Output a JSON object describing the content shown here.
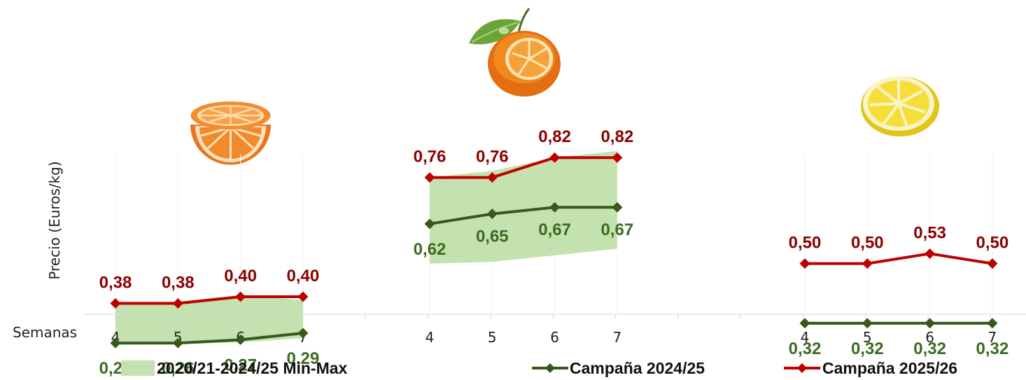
{
  "chart_data": {
    "type": "line",
    "ylabel": "Precio (Euros/kg)",
    "xlabel": "Semanas",
    "groups": [
      {
        "name": "orange-half",
        "categories": [
          "4",
          "5",
          "6",
          "7"
        ],
        "range_min": [
          0.255,
          0.257,
          0.262,
          0.275
        ],
        "range_max": [
          0.385,
          0.385,
          0.405,
          0.39
        ],
        "campaign_2024_25": [
          0.26,
          0.26,
          0.27,
          0.29
        ],
        "campaign_2025_26": [
          0.38,
          0.38,
          0.4,
          0.4
        ],
        "labels_2024_25": [
          "0,26",
          "0,26",
          "0,27",
          "0,29"
        ],
        "labels_2025_26": [
          "0,38",
          "0,38",
          "0,40",
          "0,40"
        ]
      },
      {
        "name": "mandarin",
        "categories": [
          "4",
          "5",
          "6",
          "7"
        ],
        "range_min": [
          0.5,
          0.505,
          0.525,
          0.545
        ],
        "range_max": [
          0.76,
          0.78,
          0.82,
          0.84
        ],
        "campaign_2024_25": [
          0.62,
          0.65,
          0.67,
          0.67
        ],
        "campaign_2025_26": [
          0.76,
          0.76,
          0.82,
          0.82
        ],
        "labels_2024_25": [
          "0,62",
          "0,65",
          "0,67",
          "0,67"
        ],
        "labels_2025_26": [
          "0,76",
          "0,76",
          "0,82",
          "0,82"
        ]
      },
      {
        "name": "lemon",
        "categories": [
          "4",
          "5",
          "6",
          "7"
        ],
        "range_min": [
          0.315,
          0.315,
          0.32,
          0.325
        ],
        "range_max": [
          0.32,
          0.32,
          0.32,
          0.32
        ],
        "campaign_2024_25": [
          0.32,
          0.32,
          0.32,
          0.32
        ],
        "campaign_2025_26": [
          0.5,
          0.5,
          0.53,
          0.5
        ],
        "labels_2024_25": [
          "0,32",
          "0,32",
          "0,32",
          "0,32"
        ],
        "labels_2025_26": [
          "0,50",
          "0,50",
          "0,53",
          "0,50"
        ]
      }
    ],
    "series": [
      {
        "name": "2020/21-2024/25 Min-Max",
        "kind": "band",
        "color": "#c3e2b0"
      },
      {
        "name": "Campaña 2024/25",
        "kind": "line",
        "color": "#375a1b",
        "label_color": "#3d6b21"
      },
      {
        "name": "Campaña 2025/26",
        "kind": "line",
        "color": "#c00000",
        "label_color": "#8b0000"
      }
    ],
    "legend_position": "bottom",
    "grid": false
  },
  "legend": {
    "band": "2020/21-2024/25 Min-Max",
    "line1": "Campaña 2024/25",
    "line2": "Campaña 2025/26"
  }
}
